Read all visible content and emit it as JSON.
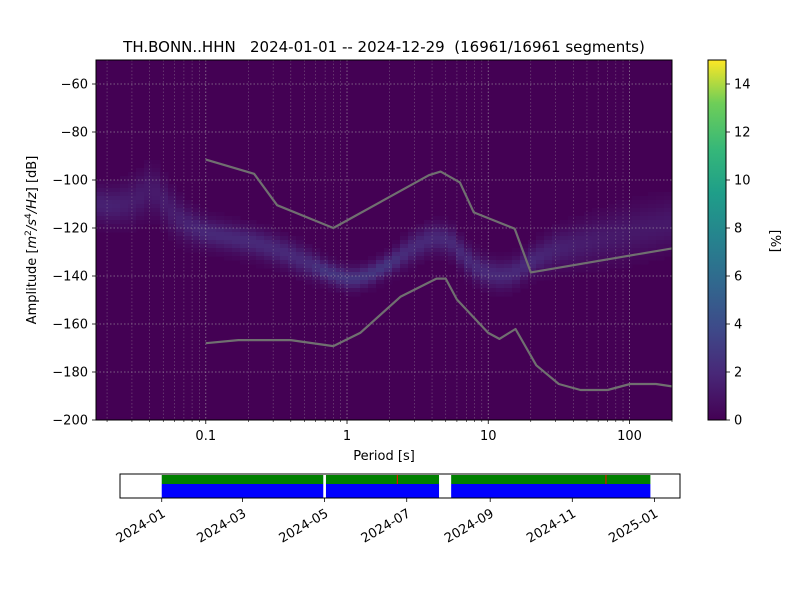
{
  "chart_data": [
    {
      "type": "heatmap",
      "title": "TH.BONN..HHN   2024-01-01 -- 2024-12-29  (16961/16961 segments)",
      "xlabel": "Period [s]",
      "ylabel_parts": {
        "prefix": "Amplitude [",
        "m": "m",
        "e2": "2",
        "s": "/s",
        "e4": "4",
        "hz": "/Hz",
        "suffix": "] [dB]"
      },
      "x_scale": "log",
      "xlim": [
        0.0167,
        200
      ],
      "ylim": [
        -200,
        -50
      ],
      "x_ticks": [
        0.1,
        1,
        10,
        100
      ],
      "x_tick_labels": [
        "0.1",
        "1",
        "10",
        "100"
      ],
      "y_ticks": [
        -200,
        -180,
        -160,
        -140,
        -120,
        -100,
        -80,
        -60
      ],
      "y_tick_labels": [
        "−200",
        "−180",
        "−160",
        "−140",
        "−120",
        "−100",
        "−80",
        "−60"
      ],
      "grid": true,
      "colormap": "viridis",
      "colorbar": {
        "label": "[%]",
        "range": [
          0,
          15
        ],
        "ticks": [
          0,
          2,
          4,
          6,
          8,
          10,
          12,
          14
        ],
        "tick_labels": [
          "0",
          "2",
          "4",
          "6",
          "8",
          "10",
          "12",
          "14"
        ]
      },
      "psd_mode": {
        "period": [
          0.0167,
          0.022,
          0.03,
          0.036,
          0.041,
          0.046,
          0.055,
          0.07,
          0.1,
          0.15,
          0.22,
          0.35,
          0.5,
          0.7,
          0.85,
          1.0,
          1.2,
          1.5,
          2.0,
          2.8,
          3.7,
          4.5,
          5.5,
          6.5,
          8,
          10,
          13,
          16,
          20,
          30,
          50,
          100,
          200
        ],
        "db": [
          -110,
          -111,
          -109,
          -106,
          -104,
          -106,
          -112,
          -118,
          -122,
          -124,
          -126,
          -130,
          -134,
          -138,
          -140,
          -141,
          -141,
          -139,
          -135,
          -129,
          -125,
          -124,
          -126,
          -131,
          -136,
          -139,
          -140,
          -138,
          -134,
          -129,
          -126,
          -122,
          -118
        ]
      },
      "psd_spread_db": [
        5,
        5,
        6,
        6,
        7,
        6,
        6,
        5,
        4,
        4,
        4,
        4,
        4,
        3,
        3,
        3,
        3,
        3,
        3,
        4,
        4,
        4,
        4,
        4,
        4,
        4,
        4,
        4,
        4,
        5,
        6,
        7,
        7
      ],
      "series": [
        {
          "role": "upper noise model",
          "color": "#707070",
          "period": [
            0.1,
            0.22,
            0.32,
            0.8,
            3.8,
            4.6,
            6.3,
            7.9,
            15.4,
            20,
            200
          ],
          "db": [
            -91.5,
            -97.4,
            -110.5,
            -120,
            -98,
            -96.5,
            -101,
            -113.5,
            -120.3,
            -138.5,
            -128.5
          ]
        },
        {
          "role": "lower noise model",
          "color": "#707070",
          "period": [
            0.1,
            0.17,
            0.4,
            0.8,
            1.24,
            2.4,
            4.3,
            5.0,
            6.0,
            10,
            12,
            15.6,
            21.9,
            31.6,
            45,
            70,
            101,
            154,
            200
          ],
          "db": [
            -168,
            -166.7,
            -166.7,
            -169.2,
            -163.7,
            -148.6,
            -141.1,
            -141.1,
            -149.8,
            -163.7,
            -166.2,
            -162.1,
            -177.2,
            -185,
            -187.5,
            -187.5,
            -185,
            -185,
            -186
          ]
        }
      ]
    },
    {
      "type": "timeline",
      "x_range": [
        "2023-12-01",
        "2025-01-20"
      ],
      "x_ticks": [
        "2024-01-01",
        "2024-03-01",
        "2024-05-01",
        "2024-07-01",
        "2024-09-01",
        "2024-11-01",
        "2025-01-01"
      ],
      "x_tick_labels": [
        "2024-01",
        "2024-03",
        "2024-05",
        "2024-07",
        "2024-09",
        "2024-11",
        "2025-01"
      ],
      "data_available_color": "#0000ff",
      "used_color": "#008000",
      "gap_marker_color": "#ff0000",
      "segments": [
        {
          "start": "2024-01-01",
          "end": "2024-04-30"
        },
        {
          "start": "2024-05-02",
          "end": "2024-07-25"
        },
        {
          "start": "2024-08-03",
          "end": "2024-12-29"
        }
      ],
      "markers": [
        "2024-06-24",
        "2024-11-26"
      ]
    }
  ]
}
